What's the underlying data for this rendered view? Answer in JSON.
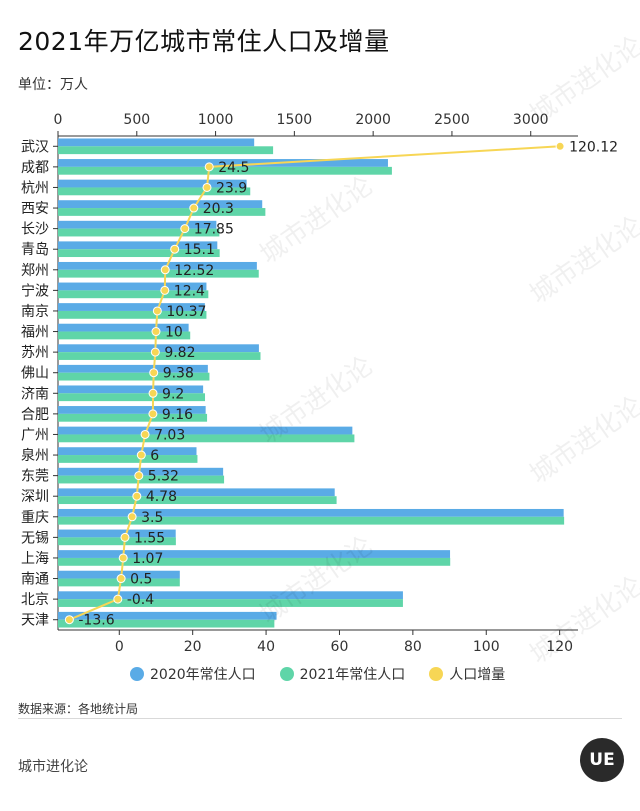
{
  "header": {
    "title": "2021年万亿城市常住人口及增量",
    "unit": "单位：万人"
  },
  "footer": {
    "source": "数据来源：各地统计局",
    "brand": "城市进化论",
    "logo_text": "UE"
  },
  "watermark": {
    "text": "城市进化论",
    "text_en": "URBAN EVOLUTION"
  },
  "colors": {
    "pop2020": "#5aabe6",
    "pop2021": "#5fd5a8",
    "increase": "#f7d655"
  },
  "chart_data": {
    "type": "bar",
    "categories": [
      "武汉",
      "成都",
      "杭州",
      "西安",
      "长沙",
      "青岛",
      "郑州",
      "宁波",
      "南京",
      "福州",
      "苏州",
      "佛山",
      "济南",
      "合肥",
      "广州",
      "泉州",
      "东莞",
      "深圳",
      "重庆",
      "无锡",
      "上海",
      "南通",
      "北京",
      "天津"
    ],
    "series": [
      {
        "name": "2020年常住人口",
        "axis": "top",
        "values": [
          1245,
          2094,
          1197,
          1296,
          1005,
          1011,
          1262,
          942,
          932,
          829,
          1275,
          951,
          921,
          937,
          1868,
          879,
          1048,
          1756,
          3209,
          747,
          2488,
          773,
          2189,
          1387
        ]
      },
      {
        "name": "2021年常住人口",
        "axis": "top",
        "values": [
          1365,
          2119,
          1220,
          1316,
          1024,
          1026,
          1274,
          954,
          942,
          839,
          1285,
          961,
          933,
          946,
          1881,
          885,
          1054,
          1768,
          3212,
          748,
          2489,
          773,
          2189,
          1373
        ]
      },
      {
        "name": "人口增量",
        "axis": "bottom",
        "type": "line",
        "values": [
          120.12,
          24.5,
          23.9,
          20.3,
          17.85,
          15.1,
          12.52,
          12.4,
          10.37,
          10,
          9.82,
          9.38,
          9.2,
          9.16,
          7.03,
          6,
          5.32,
          4.78,
          3.5,
          1.55,
          1.07,
          0.5,
          -0.4,
          -13.6
        ]
      }
    ],
    "data_labels": [
      "120.12",
      "24.5",
      "23.9",
      "20.3",
      "17.85",
      "15.1",
      "12.52",
      "12.4",
      "10.37",
      "10",
      "9.82",
      "9.38",
      "9.2",
      "9.16",
      "7.03",
      "6",
      "5.32",
      "4.78",
      "3.5",
      "1.55",
      "1.07",
      "0.5",
      "-0.4",
      "-13.6"
    ],
    "top_axis": {
      "min": 0,
      "max": 3300,
      "ticks": [
        0,
        500,
        1000,
        1500,
        2000,
        2500,
        3000
      ]
    },
    "bottom_axis": {
      "min": -16.7,
      "max": 125,
      "ticks": [
        0,
        20,
        40,
        60,
        80,
        100,
        120
      ]
    },
    "grid": false,
    "legend_position": "bottom"
  }
}
